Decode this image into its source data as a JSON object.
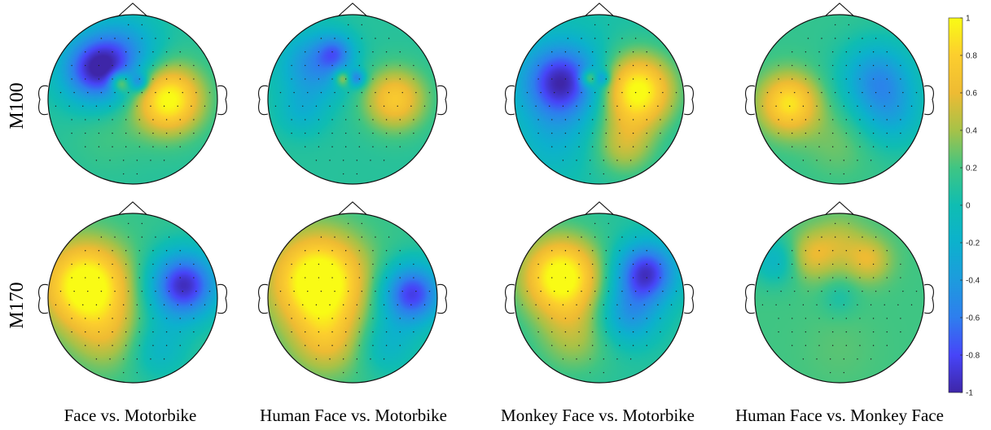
{
  "chart_data": {
    "type": "heatmap",
    "kind": "topographic scalp maps",
    "row_labels": [
      "M100",
      "M170"
    ],
    "column_labels": [
      "Face vs. Motorbike",
      "Human Face vs. Motorbike",
      "Monkey Face vs. Motorbike",
      "Human Face vs. Monkey Face"
    ],
    "colorbar": {
      "colormap": "parula",
      "range": [
        -1,
        1
      ],
      "ticks": [
        "1",
        "0.8",
        "0.6",
        "0.4",
        "0.2",
        "0",
        "-0.2",
        "-0.4",
        "-0.6",
        "-0.8",
        "-1"
      ]
    },
    "maps": [
      [
        {
          "base": 0.1,
          "blobs": [
            [
              -0.45,
              0.35,
              0.28,
              -0.95
            ],
            [
              0.42,
              0.0,
              0.28,
              0.95
            ],
            [
              -0.1,
              0.55,
              0.3,
              -0.5
            ],
            [
              -0.15,
              0.2,
              0.08,
              0.7
            ],
            [
              0.08,
              0.2,
              0.07,
              -0.5
            ],
            [
              -0.3,
              -0.4,
              0.3,
              0.1
            ]
          ]
        },
        {
          "base": 0.1,
          "blobs": [
            [
              -0.45,
              0.4,
              0.28,
              -0.6
            ],
            [
              0.5,
              0.0,
              0.25,
              0.65
            ],
            [
              -0.6,
              -0.15,
              0.2,
              -0.25
            ],
            [
              -0.12,
              0.25,
              0.07,
              0.55
            ],
            [
              0.05,
              0.25,
              0.07,
              -0.6
            ],
            [
              -0.2,
              0.55,
              0.15,
              -0.5
            ]
          ]
        },
        {
          "base": 0.05,
          "blobs": [
            [
              -0.45,
              0.2,
              0.32,
              -1.05
            ],
            [
              0.45,
              0.1,
              0.3,
              1.0
            ],
            [
              0.3,
              -0.55,
              0.25,
              0.4
            ],
            [
              -0.55,
              -0.5,
              0.3,
              -0.2
            ],
            [
              -0.12,
              0.25,
              0.07,
              0.6
            ],
            [
              0.03,
              0.25,
              0.06,
              -0.4
            ]
          ]
        },
        {
          "base": 0.15,
          "blobs": [
            [
              -0.6,
              -0.05,
              0.25,
              0.75
            ],
            [
              0.45,
              0.25,
              0.3,
              -0.6
            ],
            [
              0.6,
              -0.2,
              0.28,
              -0.35
            ],
            [
              0.0,
              -0.5,
              0.3,
              0.15
            ]
          ]
        }
      ],
      [
        {
          "base": 0.15,
          "blobs": [
            [
              -0.55,
              0.15,
              0.35,
              1.0
            ],
            [
              0.6,
              0.15,
              0.28,
              -1.1
            ],
            [
              -0.3,
              -0.45,
              0.3,
              0.3
            ],
            [
              0.3,
              -0.6,
              0.25,
              -0.3
            ]
          ]
        },
        {
          "base": 0.15,
          "blobs": [
            [
              -0.4,
              0.2,
              0.38,
              1.05
            ],
            [
              0.7,
              0.05,
              0.25,
              -1.0
            ],
            [
              -0.3,
              -0.5,
              0.3,
              0.4
            ],
            [
              0.4,
              -0.55,
              0.25,
              -0.3
            ]
          ]
        },
        {
          "base": 0.1,
          "blobs": [
            [
              -0.45,
              0.25,
              0.32,
              1.0
            ],
            [
              0.55,
              0.3,
              0.25,
              -1.0
            ],
            [
              0.35,
              -0.2,
              0.25,
              -0.5
            ],
            [
              -0.3,
              -0.45,
              0.3,
              0.3
            ]
          ]
        },
        {
          "base": 0.2,
          "blobs": [
            [
              -0.35,
              0.5,
              0.2,
              0.35
            ],
            [
              0.35,
              0.45,
              0.18,
              0.35
            ],
            [
              0.0,
              0.65,
              0.22,
              0.25
            ],
            [
              0.0,
              0.0,
              0.14,
              -0.15
            ],
            [
              -0.75,
              0.45,
              0.2,
              -0.35
            ],
            [
              0.0,
              -0.6,
              0.3,
              0.05
            ]
          ]
        }
      ]
    ]
  }
}
